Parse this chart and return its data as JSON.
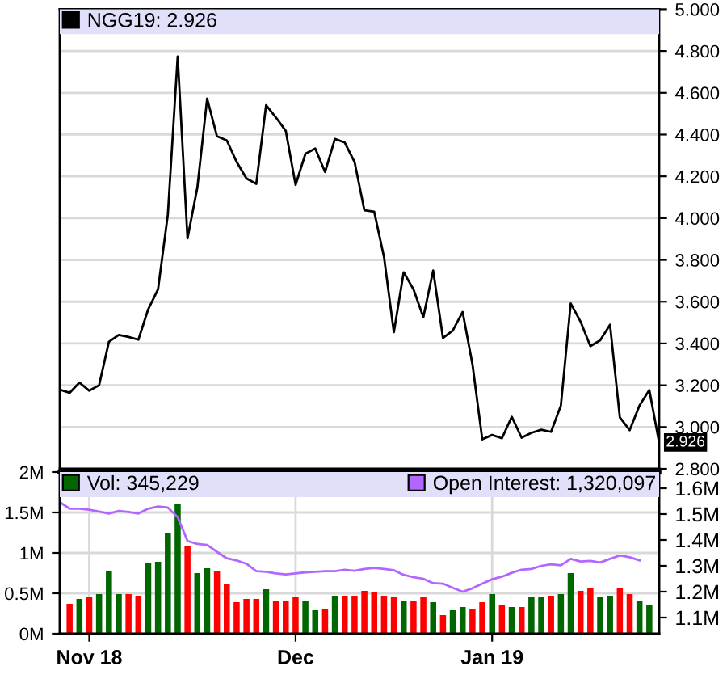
{
  "chart_data": [
    {
      "type": "line",
      "categories": [
        null,
        null,
        null,
        null,
        null,
        null,
        null,
        null,
        null,
        null,
        null,
        null,
        null,
        null,
        null,
        null,
        null,
        null,
        null,
        null,
        null,
        null,
        null,
        null,
        null,
        null,
        null,
        null,
        null,
        null,
        null,
        null,
        null,
        null,
        null,
        null,
        null,
        null,
        null,
        null,
        null,
        null,
        null,
        null,
        null,
        null,
        null,
        null,
        null,
        null,
        null,
        null,
        null,
        null,
        null,
        null,
        null,
        null,
        null,
        null,
        null,
        null
      ],
      "series": [
        {
          "name": "NGG19: 2.926",
          "color": "#000000",
          "values": [
            3.179,
            3.164,
            3.213,
            3.174,
            3.2,
            3.408,
            3.441,
            3.431,
            3.418,
            3.564,
            3.659,
            4.018,
            4.774,
            3.903,
            4.146,
            4.572,
            4.392,
            4.372,
            4.269,
            4.19,
            4.164,
            4.541,
            4.482,
            4.418,
            4.159,
            4.308,
            4.333,
            4.221,
            4.379,
            4.362,
            4.269,
            4.038,
            4.031,
            3.813,
            3.454,
            3.741,
            3.659,
            3.526,
            3.749,
            3.426,
            3.462,
            3.551,
            3.3,
            2.941,
            2.962,
            2.946,
            3.049,
            2.949,
            2.972,
            2.987,
            2.977,
            3.103,
            3.592,
            3.505,
            3.387,
            3.415,
            3.49,
            3.046,
            2.985,
            3.103,
            3.177,
            2.926
          ]
        }
      ],
      "ylim": [
        2.8,
        5.0
      ],
      "yticks": [
        {
          "value": 2.8,
          "label": "2.800"
        },
        {
          "value": 3.0,
          "label": "3.000"
        },
        {
          "value": 3.2,
          "label": "3.200"
        },
        {
          "value": 3.4,
          "label": "3.400"
        },
        {
          "value": 3.6,
          "label": "3.600"
        },
        {
          "value": 3.8,
          "label": "3.800"
        },
        {
          "value": 4.0,
          "label": "4.000"
        },
        {
          "value": 4.2,
          "label": "4.200"
        },
        {
          "value": 4.4,
          "label": "4.400"
        },
        {
          "value": 4.6,
          "label": "4.600"
        },
        {
          "value": 4.8,
          "label": "4.800"
        },
        {
          "value": 5.0,
          "label": "5.000"
        }
      ],
      "annotations": [
        "2.926"
      ],
      "grid": true,
      "legend": "top left",
      "tick_labels": "y"
    },
    {
      "type": "bar",
      "categories": [
        null,
        null,
        null,
        "Nov 18",
        null,
        null,
        null,
        null,
        null,
        null,
        null,
        null,
        null,
        null,
        null,
        null,
        null,
        null,
        null,
        null,
        null,
        null,
        null,
        null,
        "Dec",
        null,
        null,
        null,
        null,
        null,
        null,
        null,
        null,
        null,
        null,
        null,
        null,
        null,
        null,
        null,
        null,
        null,
        null,
        null,
        "Jan 19",
        null,
        null,
        null,
        null,
        null,
        null,
        null,
        null,
        null,
        null,
        null,
        null,
        null,
        null,
        null,
        null,
        null
      ],
      "series": [
        {
          "name": "Vol: 345,229",
          "type": "bar",
          "color": "#006600",
          "values": [
            null,
            0.37,
            0.43,
            0.45,
            0.49,
            0.77,
            0.49,
            0.49,
            0.47,
            0.87,
            0.89,
            1.25,
            1.61,
            1.09,
            0.75,
            0.81,
            0.77,
            0.61,
            0.39,
            0.43,
            0.43,
            0.55,
            0.41,
            0.41,
            0.45,
            0.41,
            0.29,
            0.31,
            0.47,
            0.47,
            0.47,
            0.53,
            0.51,
            0.47,
            0.45,
            0.41,
            0.41,
            0.45,
            0.39,
            0.23,
            0.29,
            0.33,
            0.31,
            0.39,
            0.49,
            0.35,
            0.33,
            0.33,
            0.45,
            0.45,
            0.47,
            0.49,
            0.75,
            0.53,
            0.57,
            0.45,
            0.47,
            0.57,
            0.49,
            0.41,
            0.35,
            null
          ],
          "colors": [
            "#006600",
            "#ff0000",
            "#006600",
            "#ff0000",
            "#006600",
            "#006600",
            "#006600",
            "#ff0000",
            "#ff0000",
            "#006600",
            "#006600",
            "#006600",
            "#006600",
            "#ff0000",
            "#006600",
            "#006600",
            "#ff0000",
            "#ff0000",
            "#ff0000",
            "#ff0000",
            "#ff0000",
            "#006600",
            "#ff0000",
            "#ff0000",
            "#ff0000",
            "#006600",
            "#006600",
            "#ff0000",
            "#006600",
            "#ff0000",
            "#ff0000",
            "#ff0000",
            "#ff0000",
            "#ff0000",
            "#ff0000",
            "#006600",
            "#ff0000",
            "#ff0000",
            "#006600",
            "#ff0000",
            "#006600",
            "#006600",
            "#ff0000",
            "#ff0000",
            "#006600",
            "#ff0000",
            "#006600",
            "#ff0000",
            "#006600",
            "#006600",
            "#ff0000",
            "#006600",
            "#006600",
            "#ff0000",
            "#ff0000",
            "#006600",
            "#006600",
            "#ff0000",
            "#ff0000",
            "#006600",
            "#006600",
            "#006600"
          ]
        },
        {
          "name": "Open Interest: 1,320,097",
          "type": "line",
          "axis": "y2",
          "color": "#b266ff",
          "values": [
            1.546,
            1.521,
            1.521,
            1.517,
            1.51,
            1.502,
            1.512,
            1.508,
            1.502,
            1.521,
            1.529,
            1.525,
            1.488,
            1.396,
            1.385,
            1.381,
            1.354,
            1.329,
            1.321,
            1.308,
            1.279,
            1.277,
            1.271,
            1.267,
            1.271,
            1.275,
            1.277,
            1.279,
            1.279,
            1.285,
            1.281,
            1.288,
            1.292,
            1.288,
            1.283,
            1.265,
            1.256,
            1.25,
            1.233,
            1.231,
            1.215,
            1.2,
            1.213,
            1.231,
            1.248,
            1.258,
            1.273,
            1.285,
            1.288,
            1.3,
            1.306,
            1.302,
            1.327,
            1.317,
            1.319,
            1.313,
            1.327,
            1.34,
            1.333,
            1.321,
            null,
            null
          ]
        }
      ],
      "ylim": [
        0,
        2
      ],
      "yticks": [
        {
          "value": 0,
          "label": "0M"
        },
        {
          "value": 0.5,
          "label": "0.5M"
        },
        {
          "value": 1,
          "label": "1M"
        },
        {
          "value": 1.5,
          "label": "1.5M"
        },
        {
          "value": 2,
          "label": "2M"
        }
      ],
      "y2lim": [
        1.0375,
        1.6625
      ],
      "y2ticks": [
        {
          "value": 1.1,
          "label": "1.1M"
        },
        {
          "value": 1.2,
          "label": "1.2M"
        },
        {
          "value": 1.3,
          "label": "1.3M"
        },
        {
          "value": 1.4,
          "label": "1.4M"
        },
        {
          "value": 1.5,
          "label": "1.5M"
        },
        {
          "value": 1.6,
          "label": "1.6M"
        }
      ],
      "grid": true,
      "legend": "top"
    }
  ]
}
